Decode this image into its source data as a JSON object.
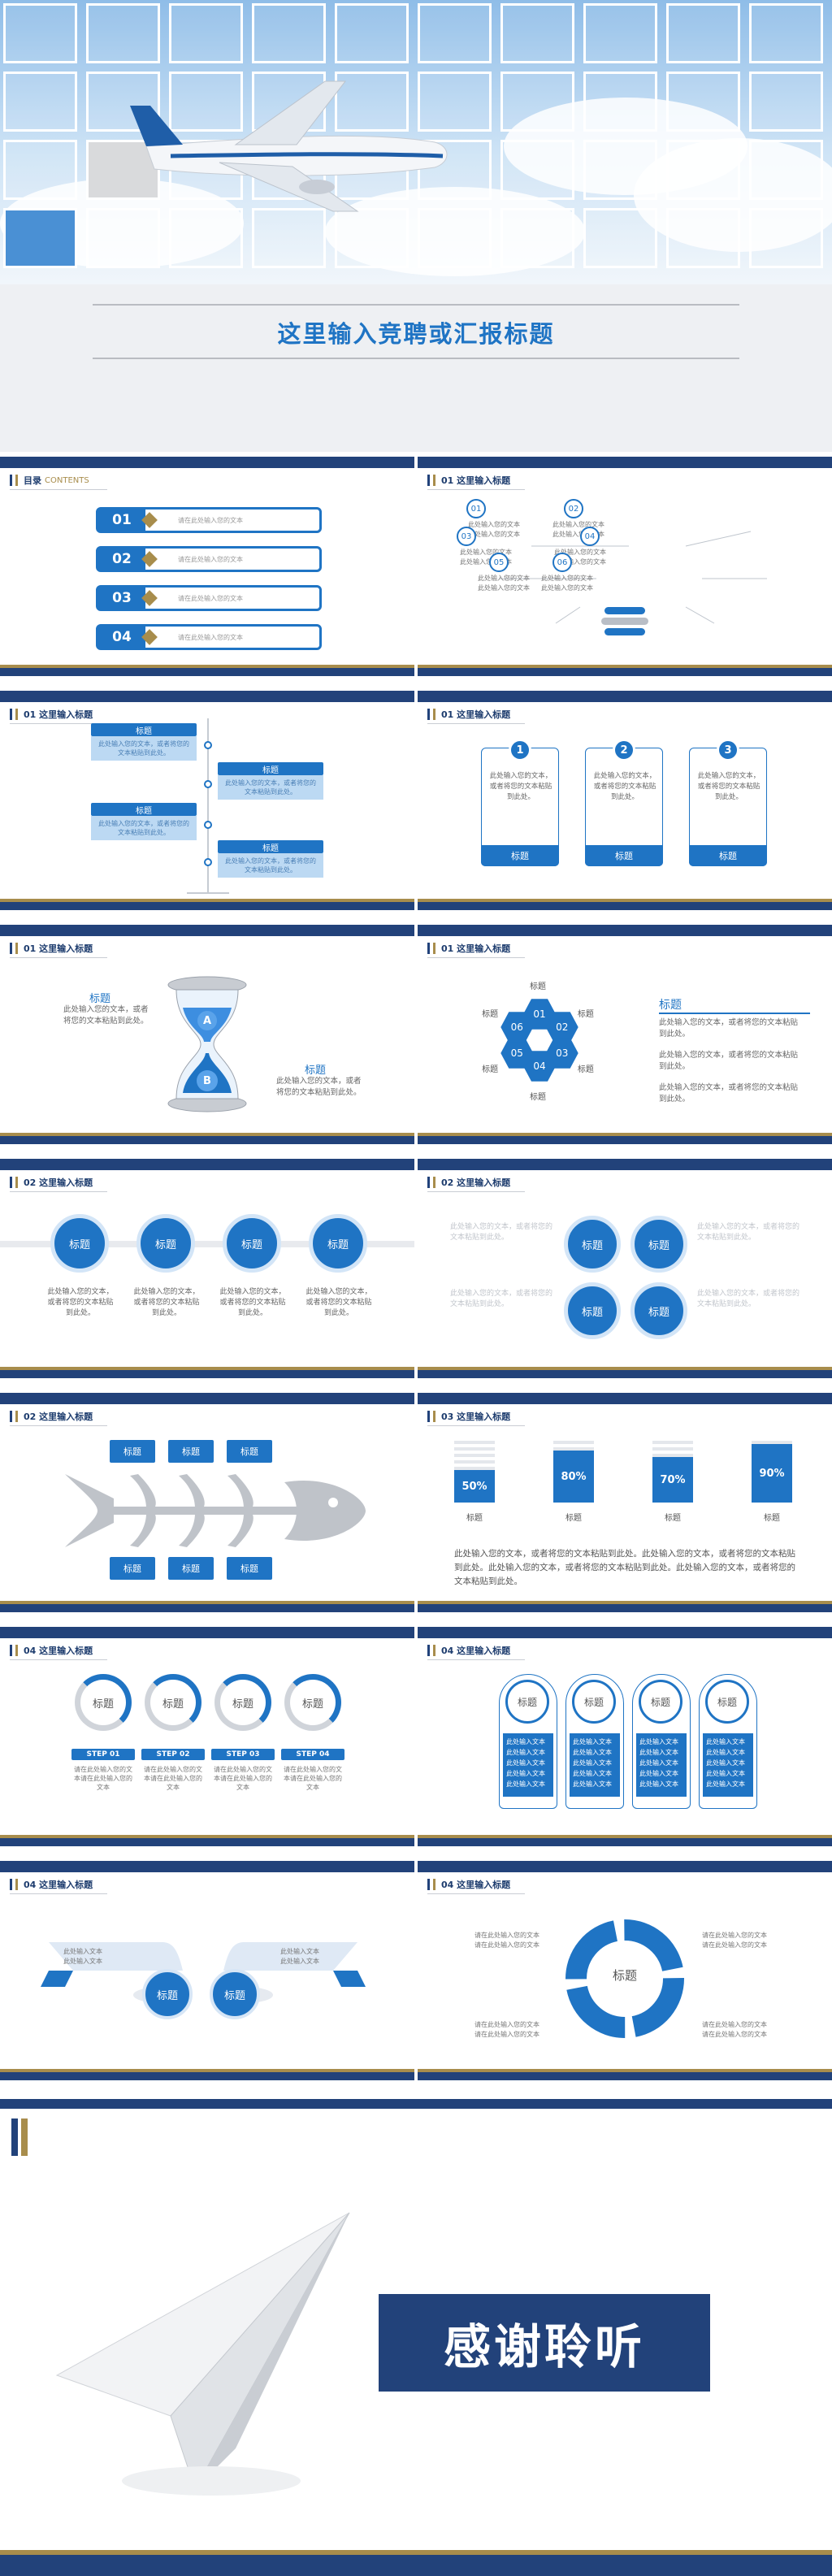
{
  "hero": {
    "title": "这里输入竞聘或汇报标题"
  },
  "headings": {
    "toc": "目录",
    "toc_en": "CONTENTS",
    "s01": "01 这里输入标题",
    "s02": "02 这里输入标题",
    "s03": "03 这里输入标题",
    "s04": "04 这里输入标题"
  },
  "toc": {
    "items": [
      {
        "num": "01",
        "text": "请在此处输入您的文本"
      },
      {
        "num": "02",
        "text": "请在此处输入您的文本"
      },
      {
        "num": "03",
        "text": "请在此处输入您的文本"
      },
      {
        "num": "04",
        "text": "请在此处输入您的文本"
      }
    ]
  },
  "slide2": {
    "nodes": [
      "01",
      "02",
      "03",
      "04",
      "05",
      "06"
    ],
    "text_a": "此处输入您的文本",
    "text_b": "此处输入您的文本"
  },
  "slide3": {
    "label": "标题",
    "text": "此处输入您的文本，或者将您的文本粘贴到此处。"
  },
  "slide4": {
    "cards": [
      {
        "num": "1",
        "text": "此处输入您的文本，或者将您的文本粘贴到此处。",
        "label": "标题"
      },
      {
        "num": "2",
        "text": "此处输入您的文本，或者将您的文本粘贴到此处。",
        "label": "标题"
      },
      {
        "num": "3",
        "text": "此处输入您的文本，或者将您的文本粘贴到此处。",
        "label": "标题"
      }
    ]
  },
  "slide5": {
    "label": "标题",
    "a": "A",
    "b": "B",
    "text": "此处输入您的文本，或者将您的文本粘贴到此处。"
  },
  "slide6": {
    "hex": [
      "01",
      "02",
      "03",
      "04",
      "05",
      "06"
    ],
    "label": "标题",
    "text": "此处输入您的文本，或者将您的文本粘贴到此处。"
  },
  "slide7": {
    "label": "标题",
    "text": "此处输入您的文本，或者将您的文本粘贴到此处。"
  },
  "slide8": {
    "label": "标题",
    "text": "此处输入您的文本，或者将您的文本粘贴到此处。"
  },
  "slide9": {
    "label": "标题"
  },
  "slide10": {
    "bars": [
      {
        "value": "50%",
        "fill": 0.5,
        "label": "标题"
      },
      {
        "value": "80%",
        "fill": 0.8,
        "label": "标题"
      },
      {
        "value": "70%",
        "fill": 0.7,
        "label": "标题"
      },
      {
        "value": "90%",
        "fill": 0.9,
        "label": "标题"
      }
    ],
    "text": "此处输入您的文本，或者将您的文本粘贴到此处。此处输入您的文本，或者将您的文本粘贴到此处。此处输入您的文本，或者将您的文本粘贴到此处。此处输入您的文本，或者将您的文本粘贴到此处。"
  },
  "slide11": {
    "label": "标题",
    "steps": [
      "STEP 01",
      "STEP 02",
      "STEP 03",
      "STEP 04"
    ],
    "text": "请在此处输入您的文本请在此处输入您的文本"
  },
  "slide12": {
    "label": "标题",
    "text": "此处输入文本"
  },
  "slide13": {
    "label": "标题",
    "text": "此处输入文本"
  },
  "slide14": {
    "label": "标题",
    "text": "请在此处输入您的文本"
  },
  "final": {
    "thanks": "感谢聆听"
  }
}
